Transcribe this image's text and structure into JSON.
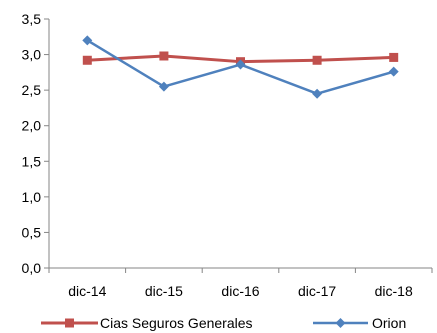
{
  "chart_data": {
    "type": "line",
    "categories": [
      "dic-14",
      "dic-15",
      "dic-16",
      "dic-17",
      "dic-18"
    ],
    "ylim": [
      0,
      3.5
    ],
    "yticks": [
      "0,0",
      "0,5",
      "1,0",
      "1,5",
      "2,0",
      "2,5",
      "3,0",
      "3,5"
    ],
    "grid": false,
    "legend_position": "bottom",
    "series": [
      {
        "name": "Cias Seguros Generales",
        "values": [
          2.92,
          2.98,
          2.9,
          2.92,
          2.96
        ],
        "color": "#c0504d",
        "marker": "square"
      },
      {
        "name": "Orion",
        "values": [
          3.2,
          2.55,
          2.86,
          2.45,
          2.76
        ],
        "color": "#4f81bd",
        "marker": "diamond"
      }
    ]
  }
}
